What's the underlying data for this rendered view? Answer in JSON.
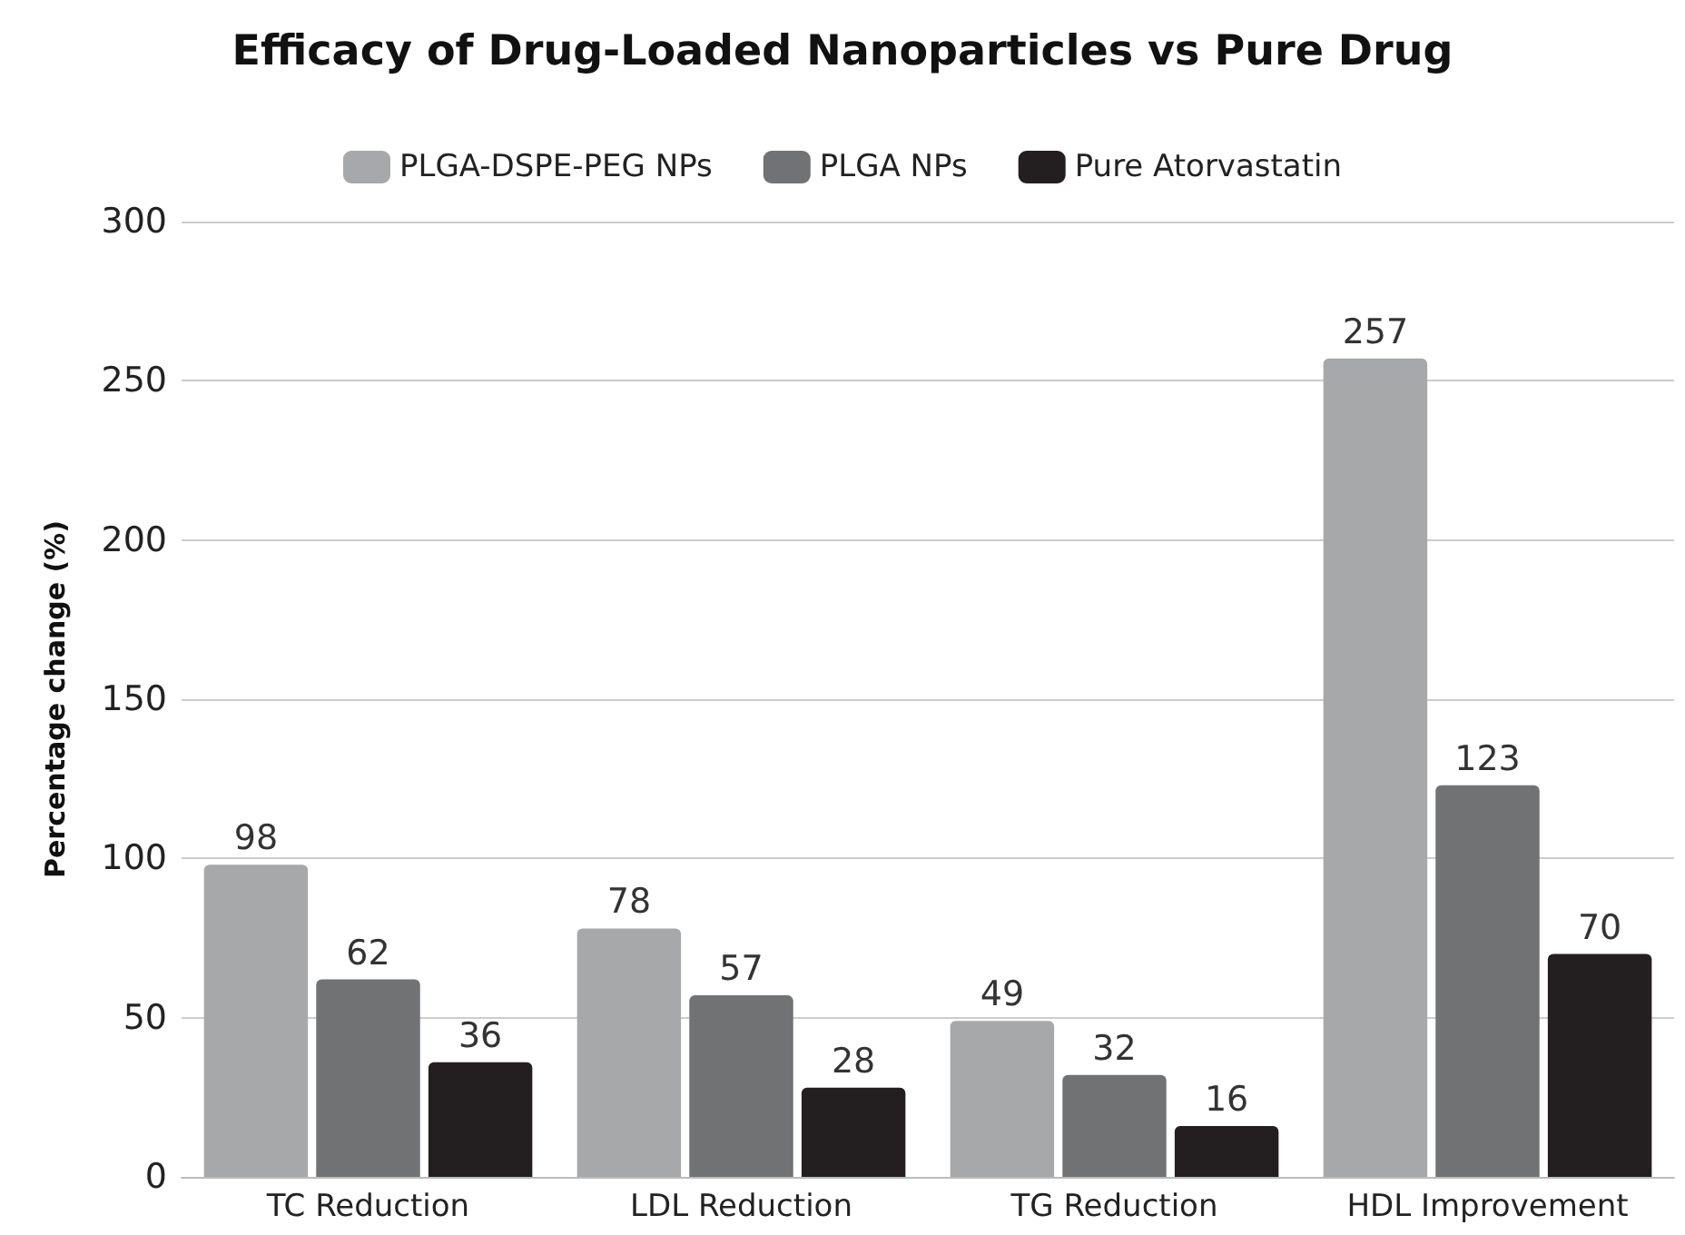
{
  "chart_data": {
    "type": "bar",
    "title": "Efficacy of Drug-Loaded Nanoparticles vs Pure Drug",
    "ylabel": "Percentage change (%)",
    "categories": [
      "TC Reduction",
      "LDL Reduction",
      "TG Reduction",
      "HDL Improvement"
    ],
    "series": [
      {
        "name": "PLGA-DSPE-PEG NPs",
        "color": "#a7a8aa",
        "values": [
          98,
          78,
          49,
          257
        ]
      },
      {
        "name": "PLGA NPs",
        "color": "#717274",
        "values": [
          62,
          57,
          32,
          123
        ]
      },
      {
        "name": "Pure Atorvastatin",
        "color": "#231f20",
        "values": [
          36,
          28,
          16,
          70
        ]
      }
    ],
    "ylim": [
      0,
      300
    ],
    "yticks": [
      0,
      50,
      100,
      150,
      200,
      250,
      300
    ],
    "grid": "y",
    "legend": "top",
    "data_labels": true
  }
}
